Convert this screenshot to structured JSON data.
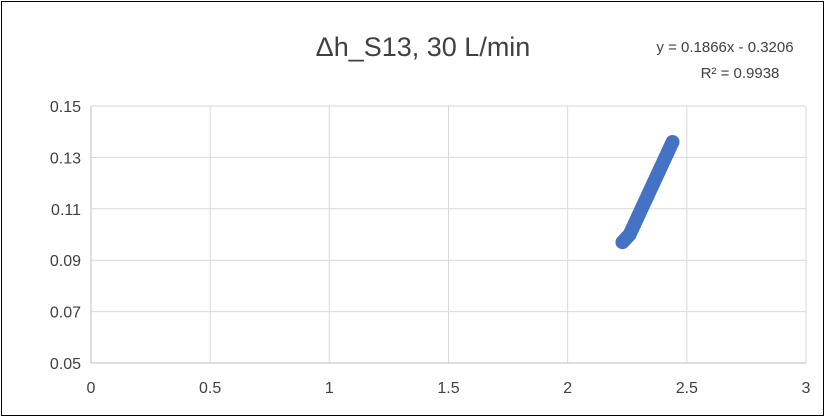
{
  "chart_data": {
    "type": "scatter",
    "title": "Δh_S13, 30 L/min",
    "xlabel": "",
    "ylabel": "",
    "xlim": [
      0,
      3
    ],
    "ylim": [
      0.05,
      0.15
    ],
    "x_ticks": [
      "0",
      "0.5",
      "1",
      "1.5",
      "2",
      "2.5",
      "3"
    ],
    "y_ticks": [
      "0.05",
      "0.07",
      "0.09",
      "0.11",
      "0.13",
      "0.15"
    ],
    "grid": true,
    "legend": "none",
    "marker_color": "#4472C4",
    "series": [
      {
        "points": [
          [
            2.23,
            0.097
          ],
          [
            2.235,
            0.0975
          ],
          [
            2.24,
            0.098
          ],
          [
            2.245,
            0.0985
          ],
          [
            2.25,
            0.099
          ],
          [
            2.255,
            0.0995
          ],
          [
            2.26,
            0.1
          ],
          [
            2.265,
            0.101
          ],
          [
            2.27,
            0.102
          ],
          [
            2.275,
            0.103
          ],
          [
            2.28,
            0.104
          ],
          [
            2.285,
            0.105
          ],
          [
            2.29,
            0.106
          ],
          [
            2.295,
            0.107
          ],
          [
            2.3,
            0.108
          ],
          [
            2.305,
            0.109
          ],
          [
            2.31,
            0.11
          ],
          [
            2.315,
            0.111
          ],
          [
            2.32,
            0.112
          ],
          [
            2.325,
            0.113
          ],
          [
            2.33,
            0.114
          ],
          [
            2.335,
            0.115
          ],
          [
            2.34,
            0.116
          ],
          [
            2.345,
            0.117
          ],
          [
            2.35,
            0.118
          ],
          [
            2.355,
            0.119
          ],
          [
            2.36,
            0.12
          ],
          [
            2.365,
            0.121
          ],
          [
            2.37,
            0.122
          ],
          [
            2.375,
            0.123
          ],
          [
            2.38,
            0.124
          ],
          [
            2.385,
            0.125
          ],
          [
            2.39,
            0.126
          ],
          [
            2.395,
            0.127
          ],
          [
            2.4,
            0.128
          ],
          [
            2.405,
            0.129
          ],
          [
            2.41,
            0.13
          ],
          [
            2.415,
            0.131
          ],
          [
            2.42,
            0.132
          ],
          [
            2.425,
            0.133
          ],
          [
            2.43,
            0.134
          ],
          [
            2.435,
            0.135
          ],
          [
            2.44,
            0.136
          ]
        ]
      }
    ],
    "trendline": {
      "equation": "y = 0.1866x - 0.3206",
      "r_squared": "R² = 0.9938"
    }
  }
}
